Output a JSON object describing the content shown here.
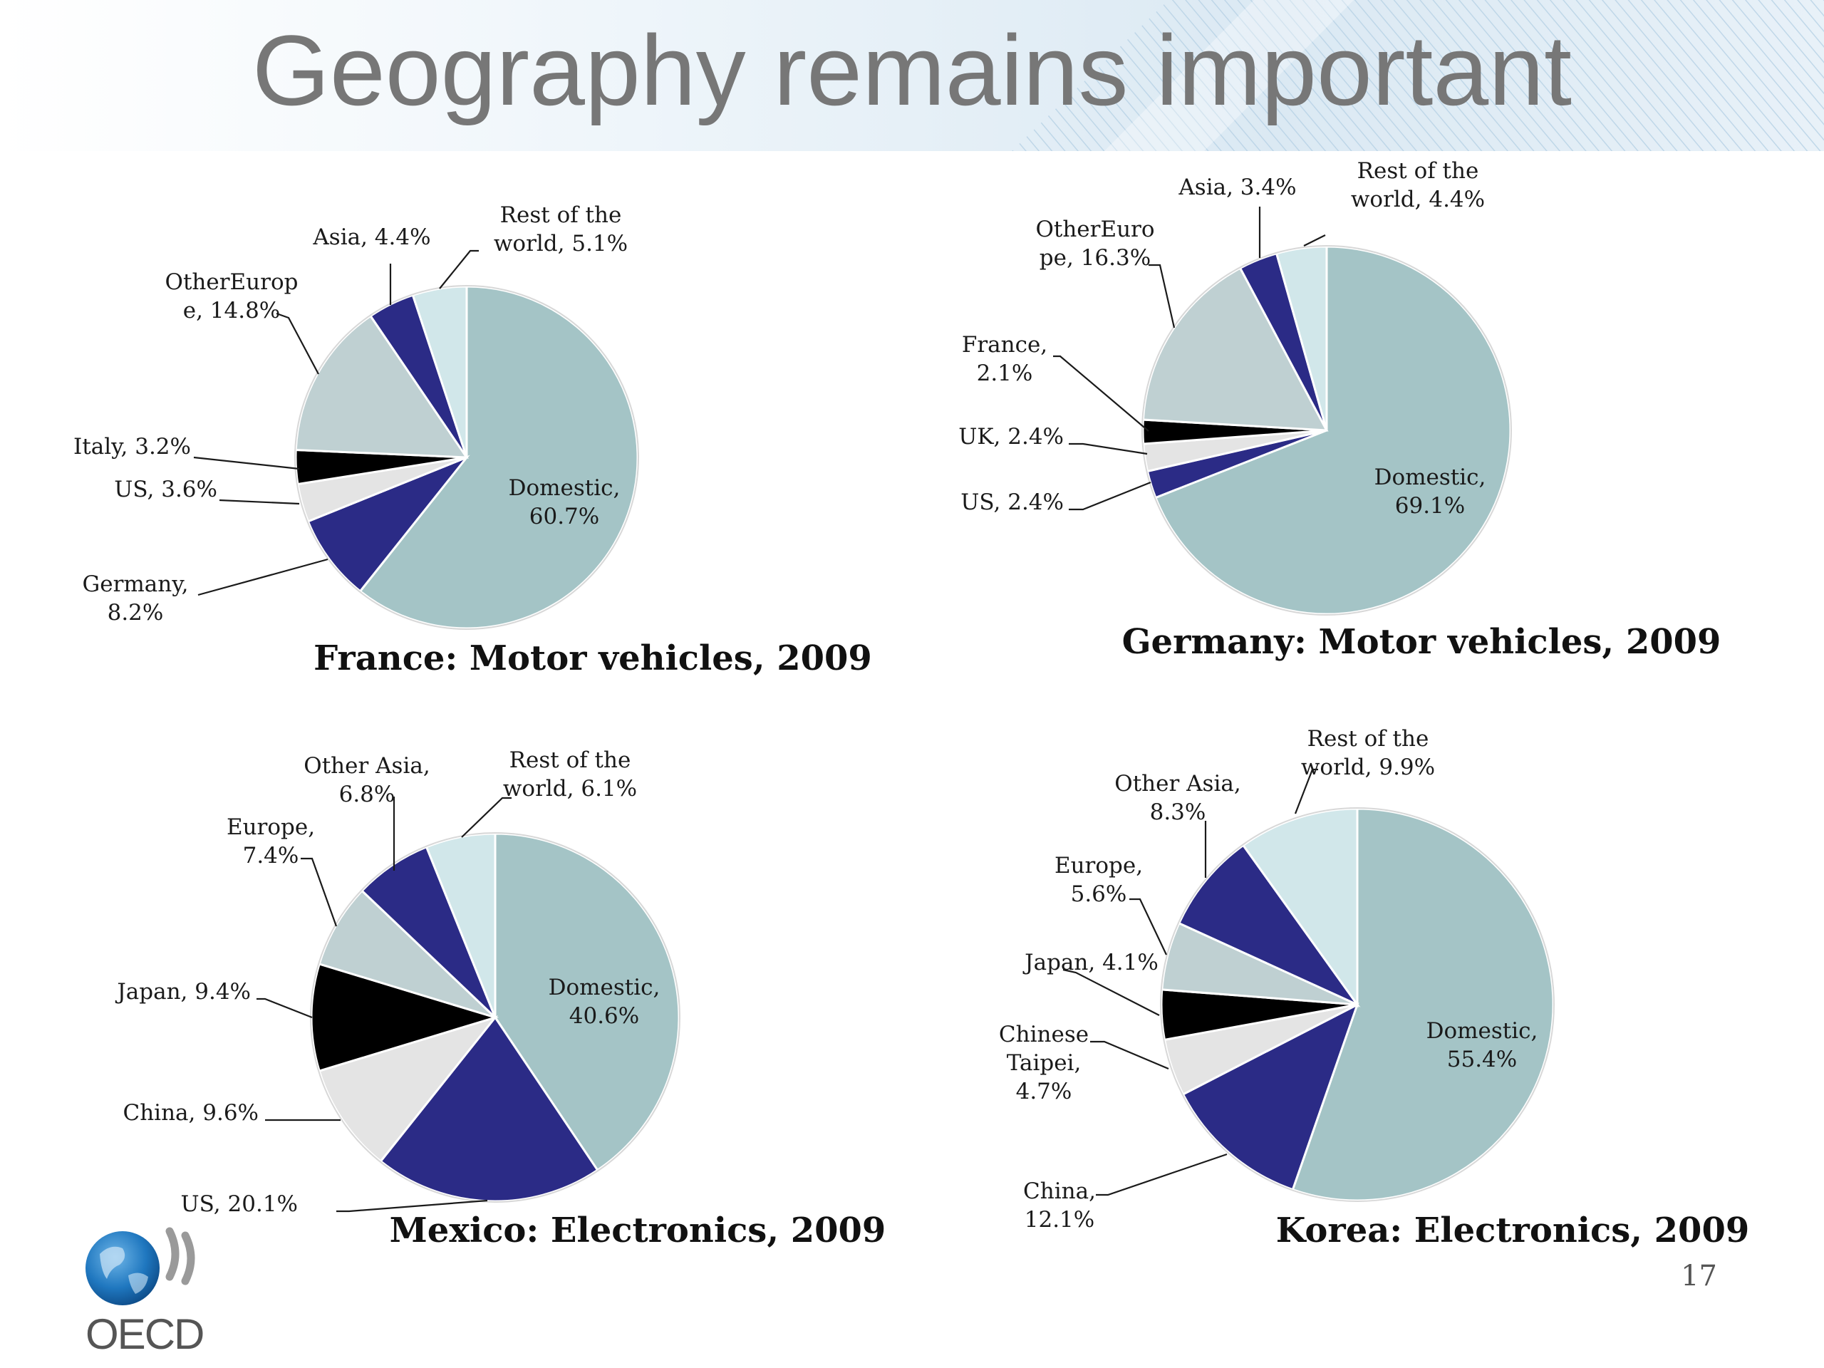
{
  "slide": {
    "title": "Geography remains important",
    "page_number": "17",
    "logo_text": "OECD"
  },
  "colors": {
    "domestic": "#a4c4c6",
    "navy": "#2b2b86",
    "light_blue": "#d1e7ea",
    "grey": "#bfd0d2",
    "black": "#000000",
    "light_grey": "#e4e4e4"
  },
  "chart_data": [
    {
      "type": "pie",
      "title": "France: Motor vehicles, 2009",
      "slices": [
        {
          "name": "Domestic",
          "value": 60.7,
          "label": [
            "Domestic,",
            "60.7%"
          ],
          "color": "#a4c4c6"
        },
        {
          "name": "Germany",
          "value": 8.2,
          "label": [
            "Germany,",
            "8.2%"
          ],
          "color": "#2b2b86"
        },
        {
          "name": "US",
          "value": 3.6,
          "label": [
            "US, 3.6%"
          ],
          "color": "#e4e4e4"
        },
        {
          "name": "Italy",
          "value": 3.2,
          "label": [
            "Italy, 3.2%"
          ],
          "color": "#000000"
        },
        {
          "name": "OtherEurope",
          "value": 14.8,
          "label": [
            "OtherEurop",
            "e, 14.8%"
          ],
          "color": "#bfd0d2"
        },
        {
          "name": "Asia",
          "value": 4.4,
          "label": [
            "Asia, 4.4%"
          ],
          "color": "#2b2b86"
        },
        {
          "name": "Rest of the world",
          "value": 5.1,
          "label": [
            "Rest of the",
            "world, 5.1%"
          ],
          "color": "#d1e7ea"
        }
      ]
    },
    {
      "type": "pie",
      "title": "Germany: Motor vehicles, 2009",
      "slices": [
        {
          "name": "Domestic",
          "value": 69.1,
          "label": [
            "Domestic,",
            "69.1%"
          ],
          "color": "#a4c4c6"
        },
        {
          "name": "US",
          "value": 2.4,
          "label": [
            "US, 2.4%"
          ],
          "color": "#2b2b86"
        },
        {
          "name": "UK",
          "value": 2.4,
          "label": [
            "UK, 2.4%"
          ],
          "color": "#e4e4e4"
        },
        {
          "name": "France",
          "value": 2.1,
          "label": [
            "France,",
            "2.1%"
          ],
          "color": "#000000"
        },
        {
          "name": "OtherEurope",
          "value": 16.3,
          "label": [
            "OtherEuro",
            "pe, 16.3%"
          ],
          "color": "#bfd0d2"
        },
        {
          "name": "Asia",
          "value": 3.4,
          "label": [
            "Asia, 3.4%"
          ],
          "color": "#2b2b86"
        },
        {
          "name": "Rest of the world",
          "value": 4.4,
          "label": [
            "Rest of the",
            "world, 4.4%"
          ],
          "color": "#d1e7ea"
        }
      ]
    },
    {
      "type": "pie",
      "title": "Mexico: Electronics, 2009",
      "slices": [
        {
          "name": "Domestic",
          "value": 40.6,
          "label": [
            "Domestic,",
            "40.6%"
          ],
          "color": "#a4c4c6"
        },
        {
          "name": "US",
          "value": 20.1,
          "label": [
            "US, 20.1%"
          ],
          "color": "#2b2b86"
        },
        {
          "name": "China",
          "value": 9.6,
          "label": [
            "China, 9.6%"
          ],
          "color": "#e4e4e4"
        },
        {
          "name": "Japan",
          "value": 9.4,
          "label": [
            "Japan, 9.4%"
          ],
          "color": "#000000"
        },
        {
          "name": "Europe",
          "value": 7.4,
          "label": [
            "Europe,",
            "7.4%"
          ],
          "color": "#bfd0d2"
        },
        {
          "name": "Other Asia",
          "value": 6.8,
          "label": [
            "Other Asia,",
            "6.8%"
          ],
          "color": "#2b2b86"
        },
        {
          "name": "Rest of the world",
          "value": 6.1,
          "label": [
            "Rest of the",
            "world, 6.1%"
          ],
          "color": "#d1e7ea"
        }
      ]
    },
    {
      "type": "pie",
      "title": "Korea: Electronics, 2009",
      "slices": [
        {
          "name": "Domestic",
          "value": 55.4,
          "label": [
            "Domestic,",
            "55.4%"
          ],
          "color": "#a4c4c6"
        },
        {
          "name": "China",
          "value": 12.1,
          "label": [
            "China,",
            "12.1%"
          ],
          "color": "#2b2b86"
        },
        {
          "name": "Chinese Taipei",
          "value": 4.7,
          "label": [
            "Chinese",
            "Taipei,",
            "4.7%"
          ],
          "color": "#e4e4e4"
        },
        {
          "name": "Japan",
          "value": 4.1,
          "label": [
            "Japan, 4.1%"
          ],
          "color": "#000000"
        },
        {
          "name": "Europe",
          "value": 5.6,
          "label": [
            "Europe,",
            "5.6%"
          ],
          "color": "#bfd0d2"
        },
        {
          "name": "Other Asia",
          "value": 8.3,
          "label": [
            "Other Asia,",
            "8.3%"
          ],
          "color": "#2b2b86"
        },
        {
          "name": "Rest of the world",
          "value": 9.9,
          "label": [
            "Rest of the",
            "world, 9.9%"
          ],
          "color": "#d1e7ea"
        }
      ]
    }
  ]
}
